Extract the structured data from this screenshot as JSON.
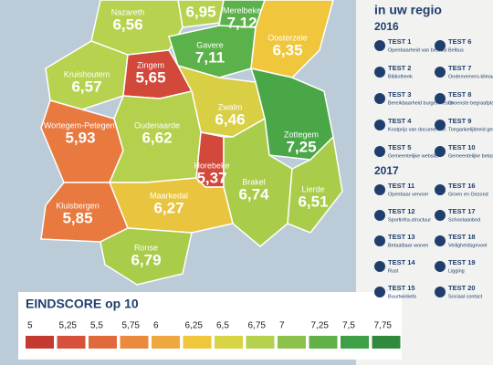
{
  "map": {
    "regions": [
      {
        "name": null,
        "score": "6,95"
      },
      {
        "name": "Merelbeke",
        "score": "7,12"
      },
      {
        "name": "Nazareth",
        "score": "6,56"
      },
      {
        "name": "Gavere",
        "score": "7,11"
      },
      {
        "name": "Oosterzele",
        "score": "6,35"
      },
      {
        "name": "Kruishoutem",
        "score": "6,57"
      },
      {
        "name": "Zingem",
        "score": "5,65"
      },
      {
        "name": "Zwalm",
        "score": "6,46"
      },
      {
        "name": "Wortegem-Petegem",
        "score": "5,93"
      },
      {
        "name": "Oudenaarde",
        "score": "6,62"
      },
      {
        "name": "Zottegem",
        "score": "7,25"
      },
      {
        "name": "Horebeke",
        "score": "5,37"
      },
      {
        "name": "Brakel",
        "score": "6,74"
      },
      {
        "name": "Lierde",
        "score": "6,51"
      },
      {
        "name": "Maarkedal",
        "score": "6,27"
      },
      {
        "name": "Kluisbergen",
        "score": "5,85"
      },
      {
        "name": "Ronse",
        "score": "6,79"
      }
    ]
  },
  "legend": {
    "title": "EINDSCORE op 10",
    "steps": [
      "5",
      "5,25",
      "5,5",
      "5,75",
      "6",
      "6,25",
      "6,5",
      "6,75",
      "7",
      "7,25",
      "7,5",
      "7,75"
    ]
  },
  "panel": {
    "title": "in uw regio",
    "groups": [
      {
        "year": "2016",
        "tests": [
          {
            "test": "TEST 1",
            "label": "Openbaarheid van bestuur"
          },
          {
            "test": "TEST 2",
            "label": "Bibliotheek"
          },
          {
            "test": "TEST 3",
            "label": "Bereikbaarheid burgemeester"
          },
          {
            "test": "TEST 4",
            "label": "Kostprijs van documenten"
          },
          {
            "test": "TEST 5",
            "label": "Gemeentelijke website"
          },
          {
            "test": "TEST 6",
            "label": "Belbus"
          },
          {
            "test": "TEST 7",
            "label": "Ondernemers-klimaat"
          },
          {
            "test": "TEST 8",
            "label": "Groenste begraafplaats"
          },
          {
            "test": "TEST 9",
            "label": "Toegankelijkheid gemeentehuis"
          },
          {
            "test": "TEST 10",
            "label": "Gemeentelijke belastingen"
          }
        ]
      },
      {
        "year": "2017",
        "tests": [
          {
            "test": "TEST 11",
            "label": "Openbaar vervoer"
          },
          {
            "test": "TEST 12",
            "label": "Sportinfra-structuur"
          },
          {
            "test": "TEST 13",
            "label": "Betaalbaar wonen"
          },
          {
            "test": "TEST 14",
            "label": "Rust"
          },
          {
            "test": "TEST 15",
            "label": "Buurtwinkels"
          },
          {
            "test": "TEST 16",
            "label": "Groen en Gezond"
          },
          {
            "test": "TEST 17",
            "label": "Schoolaanbod"
          },
          {
            "test": "TEST 18",
            "label": "Veiligheidsgevoel"
          },
          {
            "test": "TEST 19",
            "label": "Ligging"
          },
          {
            "test": "TEST 20",
            "label": "Sociaal contact"
          }
        ]
      }
    ]
  }
}
